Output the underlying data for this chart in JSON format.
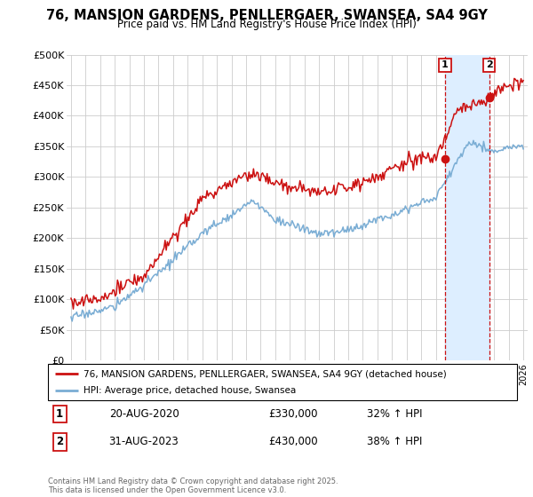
{
  "title": "76, MANSION GARDENS, PENLLERGAER, SWANSEA, SA4 9GY",
  "subtitle": "Price paid vs. HM Land Registry's House Price Index (HPI)",
  "ylabel_ticks": [
    0,
    50000,
    100000,
    150000,
    200000,
    250000,
    300000,
    350000,
    400000,
    450000,
    500000
  ],
  "ylabel_labels": [
    "£0",
    "£50K",
    "£100K",
    "£150K",
    "£200K",
    "£250K",
    "£300K",
    "£350K",
    "£400K",
    "£450K",
    "£500K"
  ],
  "xlim": [
    1994.7,
    2026.3
  ],
  "ylim": [
    0,
    500000
  ],
  "hpi_color": "#7aadd4",
  "house_color": "#cc1111",
  "shade_color": "#ddeeff",
  "sale1_x": 2020.637,
  "sale1_y": 330000,
  "sale2_x": 2023.663,
  "sale2_y": 430000,
  "legend_house": "76, MANSION GARDENS, PENLLERGAER, SWANSEA, SA4 9GY (detached house)",
  "legend_hpi": "HPI: Average price, detached house, Swansea",
  "annotation1_date": "20-AUG-2020",
  "annotation1_price": "£330,000",
  "annotation1_hpi": "32% ↑ HPI",
  "annotation2_date": "31-AUG-2023",
  "annotation2_price": "£430,000",
  "annotation2_hpi": "38% ↑ HPI",
  "footer": "Contains HM Land Registry data © Crown copyright and database right 2025.\nThis data is licensed under the Open Government Licence v3.0.",
  "background_color": "#ffffff",
  "grid_color": "#cccccc"
}
